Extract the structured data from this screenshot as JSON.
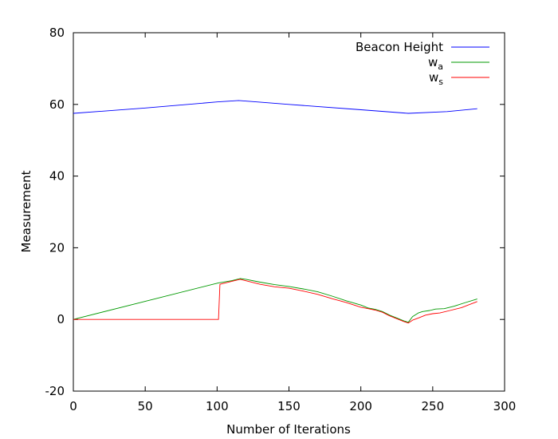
{
  "chart_data": {
    "type": "line",
    "title": "",
    "xlabel": "Number of Iterations",
    "ylabel": "Measurement",
    "xlim": [
      0,
      300
    ],
    "ylim": [
      -20,
      80
    ],
    "x_ticks": [
      0,
      50,
      100,
      150,
      200,
      250,
      300
    ],
    "y_ticks": [
      -20,
      0,
      20,
      40,
      60,
      80
    ],
    "grid": false,
    "legend_position": "top-right",
    "series": [
      {
        "name": "Beacon Height",
        "label_main": "Beacon Height",
        "label_sub": "",
        "color": "#0000ff",
        "points": [
          [
            0,
            57.5
          ],
          [
            50,
            59.0
          ],
          [
            100,
            60.7
          ],
          [
            115,
            61.1
          ],
          [
            150,
            60.0
          ],
          [
            200,
            58.5
          ],
          [
            233,
            57.5
          ],
          [
            260,
            58.0
          ],
          [
            281,
            58.8
          ]
        ]
      },
      {
        "name": "w_a",
        "label_main": "w",
        "label_sub": "a",
        "color": "#009900",
        "points": [
          [
            0,
            0.0
          ],
          [
            101,
            10.2
          ],
          [
            110,
            10.8
          ],
          [
            116,
            11.4
          ],
          [
            120,
            11.2
          ],
          [
            130,
            10.4
          ],
          [
            140,
            9.7
          ],
          [
            150,
            9.2
          ],
          [
            160,
            8.5
          ],
          [
            170,
            7.7
          ],
          [
            180,
            6.5
          ],
          [
            190,
            5.2
          ],
          [
            200,
            4.0
          ],
          [
            205,
            3.2
          ],
          [
            210,
            2.8
          ],
          [
            215,
            2.2
          ],
          [
            220,
            1.2
          ],
          [
            225,
            0.4
          ],
          [
            230,
            -0.4
          ],
          [
            233,
            -0.8
          ],
          [
            236,
            0.8
          ],
          [
            240,
            1.8
          ],
          [
            243,
            2.2
          ],
          [
            248,
            2.5
          ],
          [
            252,
            2.9
          ],
          [
            258,
            3.0
          ],
          [
            265,
            3.7
          ],
          [
            272,
            4.6
          ],
          [
            281,
            5.7
          ]
        ]
      },
      {
        "name": "w_s",
        "label_main": "w",
        "label_sub": "s",
        "color": "#ff0000",
        "points": [
          [
            0,
            0.0
          ],
          [
            101,
            0.0
          ],
          [
            102,
            9.8
          ],
          [
            110,
            10.6
          ],
          [
            116,
            11.2
          ],
          [
            120,
            10.8
          ],
          [
            130,
            9.8
          ],
          [
            140,
            9.1
          ],
          [
            150,
            8.7
          ],
          [
            160,
            7.9
          ],
          [
            170,
            7.0
          ],
          [
            180,
            5.8
          ],
          [
            190,
            4.7
          ],
          [
            200,
            3.4
          ],
          [
            205,
            3.0
          ],
          [
            210,
            2.6
          ],
          [
            215,
            2.0
          ],
          [
            220,
            1.0
          ],
          [
            225,
            0.2
          ],
          [
            230,
            -0.6
          ],
          [
            233,
            -1.0
          ],
          [
            236,
            -0.2
          ],
          [
            240,
            0.4
          ],
          [
            245,
            1.2
          ],
          [
            250,
            1.6
          ],
          [
            255,
            1.8
          ],
          [
            262,
            2.5
          ],
          [
            270,
            3.3
          ],
          [
            281,
            5.0
          ]
        ]
      }
    ]
  }
}
